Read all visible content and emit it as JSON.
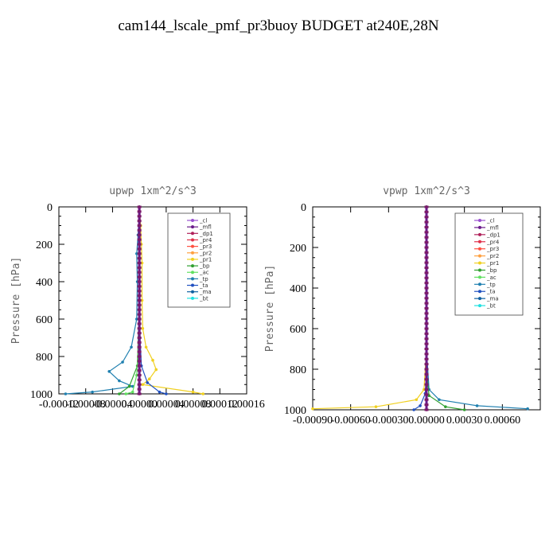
{
  "figure": {
    "title": "cam144_lscale_pmf_pr3buoy  BUDGET at240E,28N"
  },
  "legend_entries": [
    "_cl",
    "_mfl",
    "_dp1",
    "_pr4",
    "_pr3",
    "_pr2",
    "_pr1",
    "_bp",
    "_ac",
    "_tp",
    "_ta",
    "_ma",
    "_bt"
  ],
  "series_colors": [
    "#9a4fd0",
    "#6a1a8a",
    "#b0205a",
    "#e0304a",
    "#ff5040",
    "#ffa040",
    "#f0d020",
    "#30a030",
    "#60e060",
    "#2080b0",
    "#2050c0",
    "#1060a0",
    "#20e0e0"
  ],
  "chart_data": [
    {
      "type": "line",
      "title": "upwp   1xm^2/s^3",
      "ylabel": "Pressure [hPa]",
      "xlim": [
        -0.00012,
        0.00016
      ],
      "ylim": [
        1000,
        0
      ],
      "xticks": [
        -0.00012,
        -8e-05,
        -4e-05,
        0.0,
        4e-05,
        8e-05,
        0.00012,
        0.00016
      ],
      "xtick_labels": [
        "-0.00012",
        "-0.00008",
        "-0.00004",
        "0.00000",
        "0.00004",
        "0.00008",
        "0.00012",
        "0.00016"
      ],
      "yticks": [
        0,
        200,
        400,
        600,
        800,
        1000
      ],
      "ytick_labels": [
        "0",
        "200",
        "400",
        "600",
        "800",
        "1000"
      ],
      "legend_position": "top-right",
      "series": [
        {
          "name": "_pr1",
          "points": [
            [
              0,
              0
            ],
            [
              2e-06,
              100
            ],
            [
              3e-06,
              200
            ],
            [
              4e-06,
              300
            ],
            [
              4e-06,
              500
            ],
            [
              5e-06,
              650
            ],
            [
              1e-05,
              750
            ],
            [
              2e-05,
              820
            ],
            [
              2.5e-05,
              870
            ],
            [
              1.5e-05,
              920
            ],
            [
              5e-06,
              950
            ],
            [
              8e-05,
              990
            ],
            [
              9.5e-05,
              1000
            ]
          ]
        },
        {
          "name": "_tp",
          "points": [
            [
              0,
              0
            ],
            [
              -2e-06,
              150
            ],
            [
              -4e-06,
              250
            ],
            [
              -3e-06,
              400
            ],
            [
              -4e-06,
              600
            ],
            [
              -1.2e-05,
              750
            ],
            [
              -2.5e-05,
              830
            ],
            [
              -4.5e-05,
              880
            ],
            [
              -3e-05,
              930
            ],
            [
              -1e-05,
              960
            ],
            [
              -7e-05,
              990
            ],
            [
              -0.00011,
              1000
            ]
          ]
        },
        {
          "name": "_ta",
          "points": [
            [
              0,
              0
            ],
            [
              0.0,
              300
            ],
            [
              1e-06,
              700
            ],
            [
              3e-06,
              850
            ],
            [
              1.2e-05,
              940
            ],
            [
              3e-05,
              990
            ],
            [
              4e-05,
              1000
            ]
          ]
        },
        {
          "name": "_bp",
          "points": [
            [
              0,
              0
            ],
            [
              0.0,
              500
            ],
            [
              -3e-06,
              850
            ],
            [
              -1.5e-05,
              960
            ],
            [
              -3e-05,
              1000
            ]
          ]
        },
        {
          "name": "_ac",
          "points": [
            [
              0,
              0
            ],
            [
              0.0,
              600
            ],
            [
              -4e-06,
              900
            ],
            [
              -1e-05,
              990
            ],
            [
              -2e-05,
              1000
            ]
          ]
        },
        {
          "name": "_dp1",
          "points": [
            [
              0,
              0
            ],
            [
              0.0,
              1000
            ]
          ]
        },
        {
          "name": "_mfl",
          "points": [
            [
              0,
              0
            ],
            [
              0.0,
              1000
            ]
          ]
        }
      ]
    },
    {
      "type": "line",
      "title": "vpwp   1xm^2/s^3",
      "ylabel": "Pressure [hPa]",
      "xlim": [
        -0.0009,
        0.0009
      ],
      "ylim": [
        1000,
        0
      ],
      "xticks": [
        -0.0009,
        -0.0006,
        -0.0003,
        0.0,
        0.0003,
        0.0006
      ],
      "xtick_labels": [
        "-0.00090",
        "-0.00060",
        "-0.00030",
        "0.00000",
        "0.00030",
        "0.00060"
      ],
      "yticks": [
        0,
        200,
        400,
        600,
        800,
        1000
      ],
      "ytick_labels": [
        "0",
        "200",
        "400",
        "600",
        "800",
        "1000"
      ],
      "legend_position": "top-right",
      "series": [
        {
          "name": "_pr1",
          "points": [
            [
              0,
              0
            ],
            [
              0.0,
              700
            ],
            [
              -2e-05,
              900
            ],
            [
              -8e-05,
              950
            ],
            [
              -0.0004,
              985
            ],
            [
              -0.0009,
              995
            ]
          ]
        },
        {
          "name": "_tp",
          "points": [
            [
              0,
              0
            ],
            [
              0.0,
              700
            ],
            [
              2e-05,
              900
            ],
            [
              0.0001,
              950
            ],
            [
              0.0004,
              980
            ],
            [
              0.0008,
              995
            ]
          ]
        },
        {
          "name": "_ta",
          "points": [
            [
              0,
              0
            ],
            [
              0.0,
              800
            ],
            [
              -1e-05,
              920
            ],
            [
              -5e-05,
              980
            ],
            [
              -0.0001,
              1000
            ]
          ]
        },
        {
          "name": "_bp",
          "points": [
            [
              0,
              0
            ],
            [
              0.0,
              800
            ],
            [
              2e-05,
              930
            ],
            [
              0.00015,
              985
            ],
            [
              0.0003,
              1000
            ]
          ]
        },
        {
          "name": "_dp1",
          "points": [
            [
              0,
              0
            ],
            [
              0.0,
              1000
            ]
          ]
        },
        {
          "name": "_mfl",
          "points": [
            [
              0,
              0
            ],
            [
              0.0,
              1000
            ]
          ]
        }
      ]
    }
  ]
}
